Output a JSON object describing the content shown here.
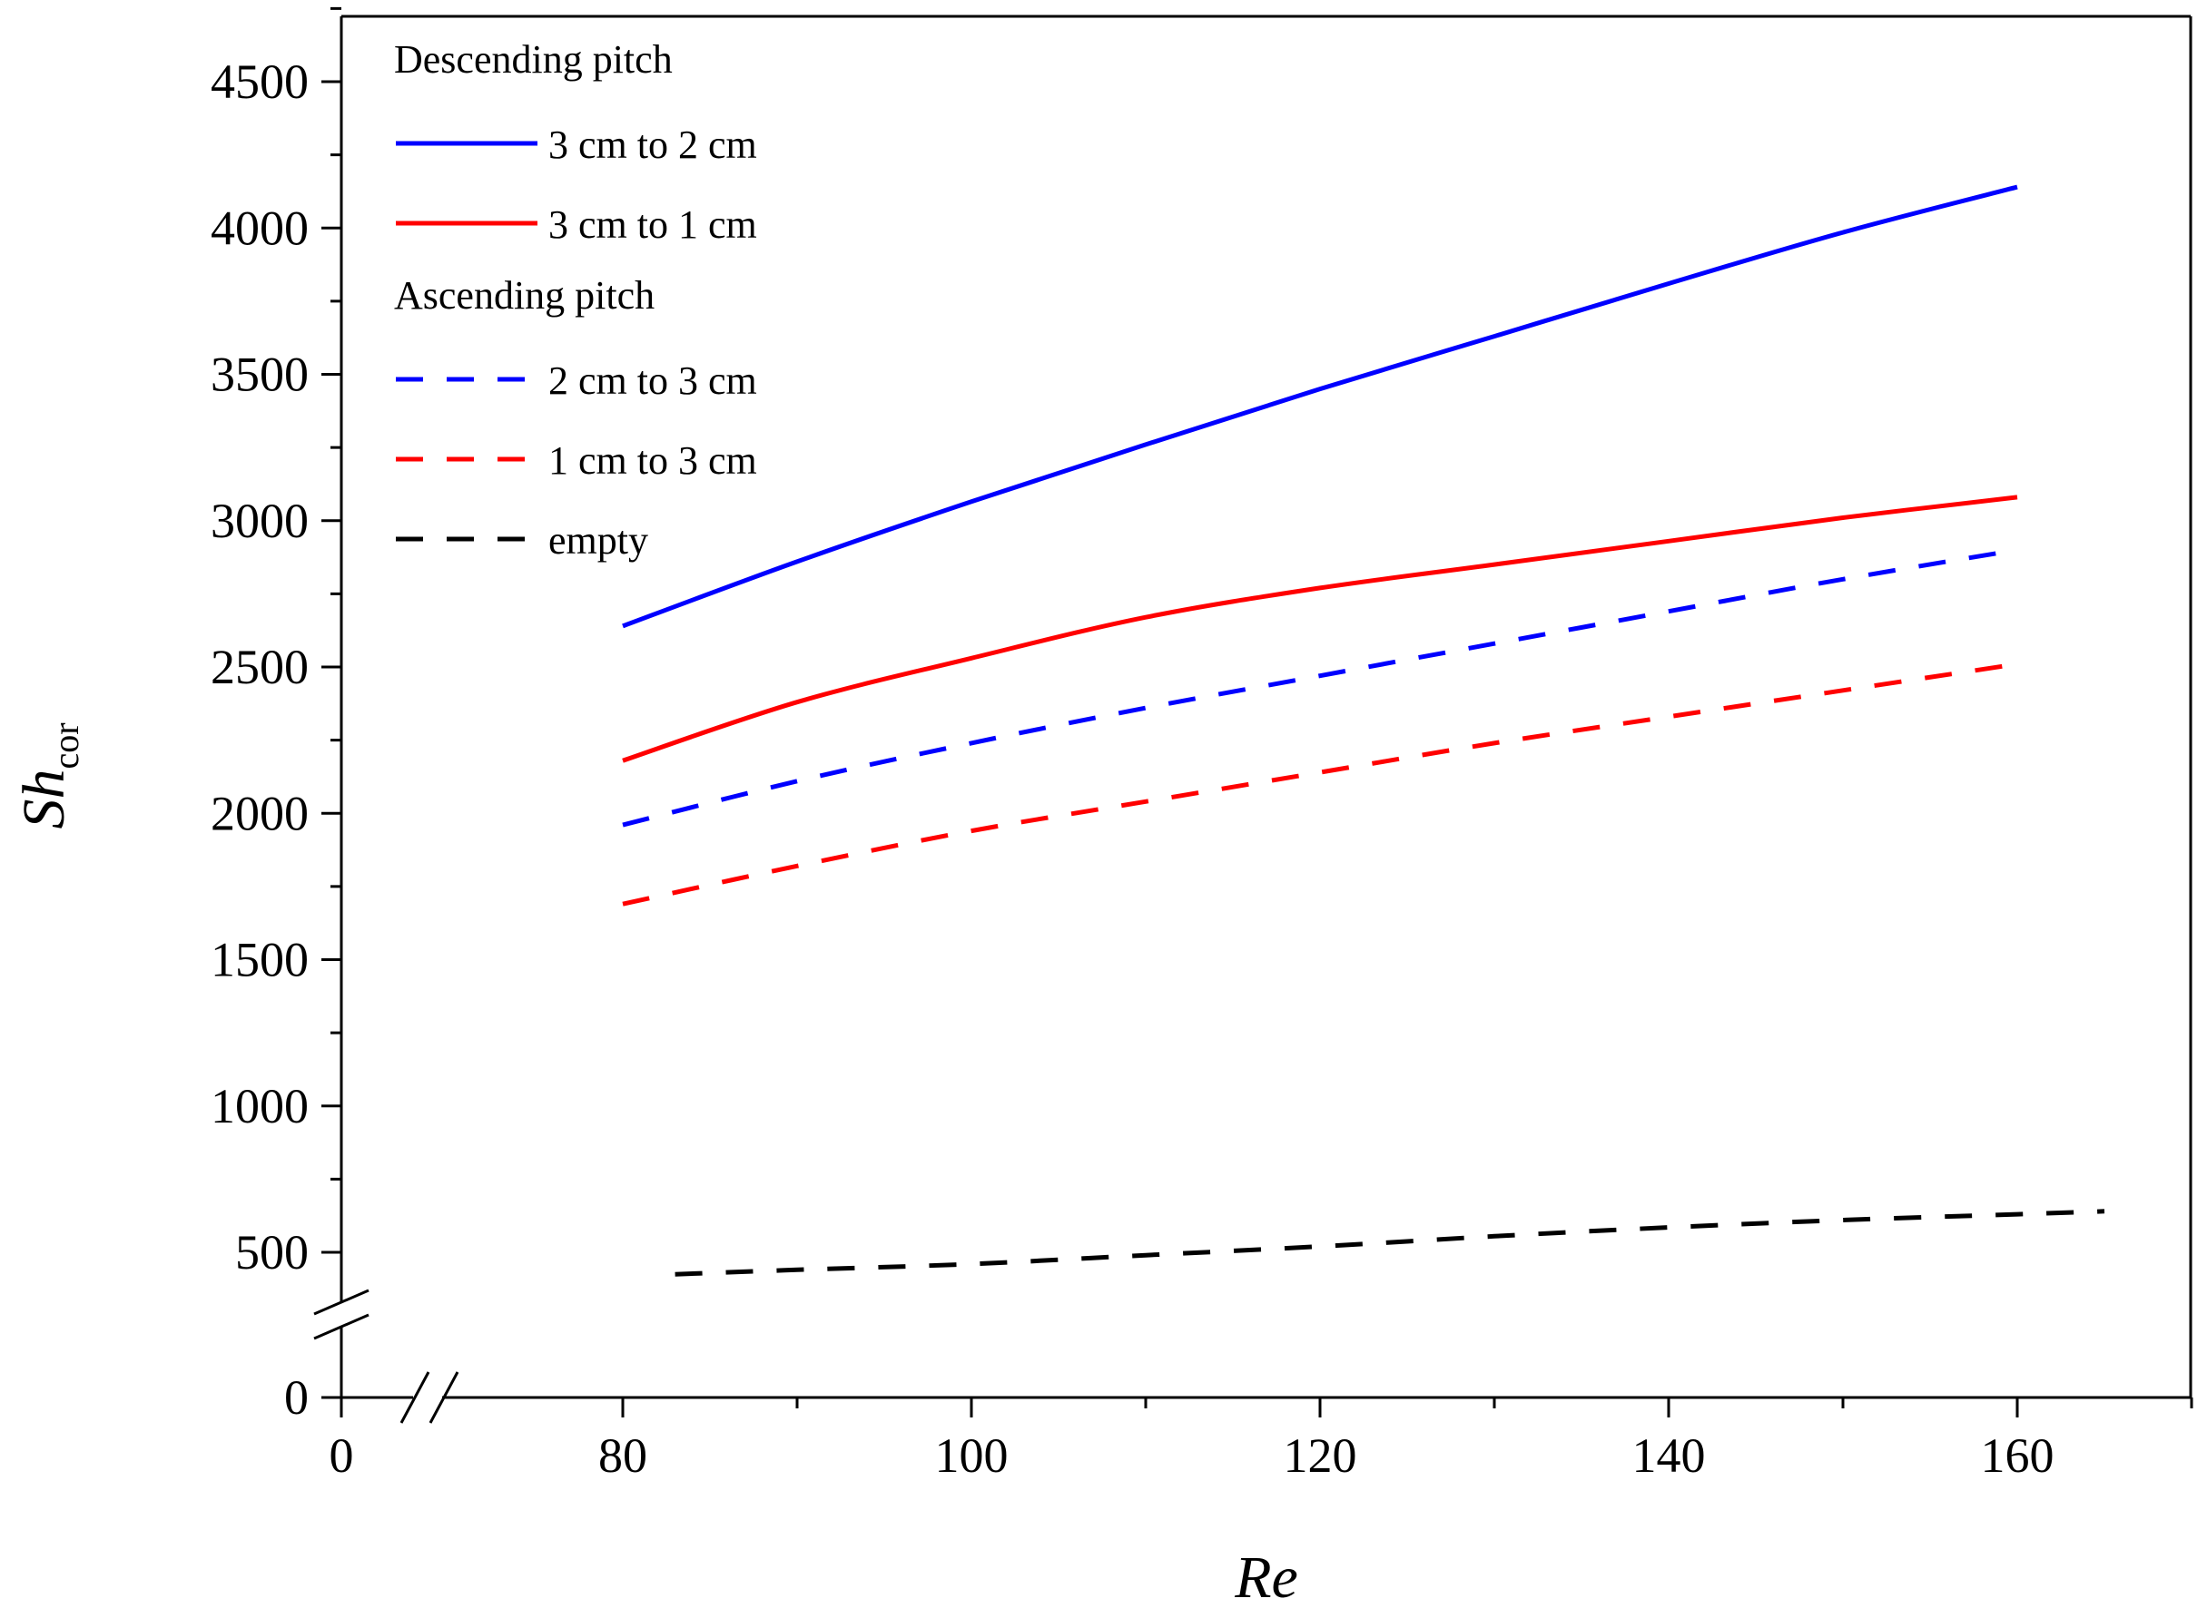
{
  "chart_data": {
    "type": "line",
    "title": "",
    "xlabel": "Re",
    "ylabel": {
      "main": "Sh",
      "subscript": "cor"
    },
    "x_axis": {
      "range": [
        0,
        170
      ],
      "break_between": [
        0,
        80
      ],
      "ticks": [
        0,
        80,
        100,
        120,
        140,
        160
      ],
      "tick_labels": [
        "0",
        "80",
        "100",
        "120",
        "140",
        "160"
      ],
      "minor_ticks": [
        90,
        110,
        130,
        150,
        170
      ]
    },
    "y_axis": {
      "range": [
        0,
        4750
      ],
      "break_between": [
        0,
        500
      ],
      "ticks": [
        0,
        500,
        1000,
        1500,
        2000,
        2500,
        3000,
        3500,
        4000,
        4500
      ],
      "tick_labels": [
        "0",
        "500",
        "1000",
        "1500",
        "2000",
        "2500",
        "3000",
        "3500",
        "4000",
        "4500"
      ],
      "minor_ticks": [
        750,
        1250,
        1750,
        2250,
        2750,
        3250,
        3750,
        4250,
        4750
      ]
    },
    "grid": false,
    "legend": {
      "placement": "top-left",
      "groups": [
        {
          "title": "Descending pitch",
          "series": [
            0,
            1
          ]
        },
        {
          "title": "Ascending pitch",
          "series": [
            2,
            3
          ]
        },
        {
          "title": "",
          "series": [
            4
          ]
        }
      ]
    },
    "series": [
      {
        "name": "3 cm to 2 cm",
        "color": "#0000ff",
        "style": "solid",
        "x": [
          80,
          90,
          100,
          110,
          120,
          130,
          140,
          150,
          160
        ],
        "y": [
          2640,
          2860,
          3065,
          3260,
          3450,
          3630,
          3810,
          3985,
          4140
        ]
      },
      {
        "name": "3 cm to 1 cm",
        "color": "#ff0000",
        "style": "solid",
        "x": [
          80,
          90,
          100,
          110,
          120,
          130,
          140,
          150,
          160
        ],
        "y": [
          2180,
          2380,
          2530,
          2670,
          2770,
          2850,
          2930,
          3010,
          3080
        ]
      },
      {
        "name": "2 cm to 3 cm",
        "color": "#0000ff",
        "style": "dashed",
        "x": [
          80,
          90,
          100,
          110,
          120,
          130,
          140,
          150,
          160
        ],
        "y": [
          1960,
          2110,
          2240,
          2360,
          2470,
          2580,
          2690,
          2800,
          2900
        ]
      },
      {
        "name": "1 cm to 3 cm",
        "color": "#ff0000",
        "style": "dashed",
        "x": [
          80,
          90,
          100,
          110,
          120,
          130,
          140,
          150,
          160
        ],
        "y": [
          1690,
          1820,
          1940,
          2040,
          2140,
          2240,
          2330,
          2420,
          2510
        ]
      },
      {
        "name": "empty",
        "color": "#000000",
        "style": "dashed",
        "x": [
          83,
          90,
          100,
          110,
          120,
          130,
          140,
          150,
          160,
          165
        ],
        "y": [
          425,
          440,
          460,
          490,
          520,
          555,
          585,
          610,
          630,
          640
        ]
      }
    ]
  }
}
